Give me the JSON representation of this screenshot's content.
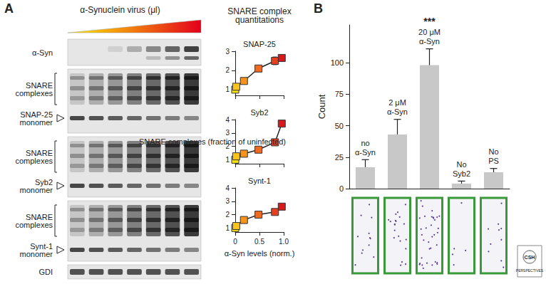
{
  "panels": [
    "A",
    "B"
  ],
  "blot": {
    "header": "α-Synuclein virus (μl)",
    "rows": [
      {
        "label": "α-Syn"
      },
      {
        "label": "SNARE\ncomplexes",
        "monomer": "SNAP-25\nmonomer"
      },
      {
        "label": "SNARE\ncomplexes",
        "monomer": "Syb2\nmonomer"
      },
      {
        "label": "SNARE\ncomplexes",
        "monomer": "Synt-1\nmonomer"
      },
      {
        "label": "GDI"
      }
    ]
  },
  "quantitation": {
    "title": "SNARE complex\nquantitations",
    "x_label": "α-Syn levels (norm.)",
    "y_label": "SNARE complexes (fraction of uninfected)"
  },
  "chart_data": [
    {
      "type": "line",
      "title": "SNAP-25",
      "marker": "square",
      "line_style": "solid",
      "x": [
        0,
        0.02,
        0.18,
        0.48,
        0.82,
        0.96
      ],
      "values": [
        1.0,
        1.15,
        1.45,
        2.1,
        2.5,
        2.65
      ],
      "errors": [
        0.05,
        0.08,
        0.1,
        0.12,
        0.2,
        0.1
      ],
      "colors": [
        "#f7e30f",
        "#f9c31a",
        "#f7931e",
        "#ef6a22",
        "#e8401f",
        "#d7191c"
      ],
      "xlim": [
        0,
        1
      ],
      "xticks": [
        0,
        0.5,
        {
          "value": 1,
          "label": "1.0"
        }
      ],
      "ylim": [
        0.7,
        3
      ],
      "yticks": [
        1,
        2,
        3
      ],
      "tick_labels": "y",
      "grid": false
    },
    {
      "type": "line",
      "title": "Syb2",
      "marker": "square",
      "line_style": "solid",
      "x": [
        0,
        0.02,
        0.18,
        0.48,
        0.82,
        0.96
      ],
      "values": [
        1.0,
        1.25,
        1.45,
        1.75,
        2.3,
        3.7
      ],
      "errors": [
        0.05,
        0.08,
        0.1,
        0.1,
        0.12,
        0.15
      ],
      "colors": [
        "#f7e30f",
        "#f9c31a",
        "#f7931e",
        "#ef6a22",
        "#e8401f",
        "#d7191c"
      ],
      "xlim": [
        0,
        1
      ],
      "xticks": [
        0,
        0.5,
        {
          "value": 1,
          "label": "1.0"
        }
      ],
      "ylim": [
        0.7,
        4
      ],
      "yticks": [
        1,
        2,
        3,
        4
      ],
      "tick_labels": "y",
      "grid": false
    },
    {
      "type": "line",
      "title": "Synt-1",
      "marker": "square",
      "line_style": "solid",
      "x": [
        0,
        0.02,
        0.18,
        0.48,
        0.82,
        0.96
      ],
      "values": [
        1.0,
        1.15,
        1.6,
        2.0,
        2.2,
        2.6
      ],
      "errors": [
        0.05,
        0.08,
        0.12,
        0.12,
        0.1,
        0.15
      ],
      "colors": [
        "#f7e30f",
        "#f9c31a",
        "#f7931e",
        "#ef6a22",
        "#e8401f",
        "#d7191c"
      ],
      "xlim": [
        0,
        1
      ],
      "xticks": [
        0,
        0.5,
        {
          "value": 1,
          "label": "1.0"
        }
      ],
      "ylim": [
        0.7,
        4
      ],
      "yticks": [
        1,
        2,
        3,
        4
      ],
      "tick_labels": true,
      "grid": false
    },
    {
      "type": "bar",
      "y_label": "Count",
      "categories": [
        "no\nα-Syn",
        "2 μM\nα-Syn",
        "20 μM\nα-Syn",
        "No\nSyb2",
        "No\nPS"
      ],
      "values": [
        17,
        43,
        98,
        4,
        13
      ],
      "errors": [
        6,
        12,
        13,
        2,
        3
      ],
      "color": "#c8c8c8",
      "annotations": [
        {
          "category": "20 μM\nα-Syn",
          "text": "***"
        }
      ],
      "ylim": [
        0,
        130
      ],
      "yticks": [
        0,
        25,
        50,
        75,
        100
      ],
      "tick_labels": "y",
      "grid": false
    }
  ],
  "logo": [
    "CSH",
    "PERSPECTIVES"
  ]
}
